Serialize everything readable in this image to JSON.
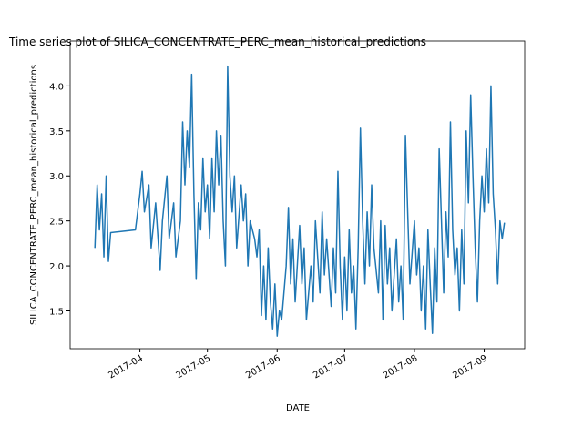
{
  "chart_data": {
    "type": "line",
    "title": "Time series plot of SILICA_CONCENTRATE_PERC_mean_historical_predictions",
    "x_label": "DATE",
    "y_label": "SILICA_CONCENTRATE_PERC_mean_historical_predictions",
    "color": "#1f77b4",
    "xlim": [
      "2017-03-01",
      "2017-09-19"
    ],
    "xticks": [
      {
        "value": "2017-04-01",
        "label": "2017-04"
      },
      {
        "value": "2017-05-01",
        "label": "2017-05"
      },
      {
        "value": "2017-06-01",
        "label": "2017-06"
      },
      {
        "value": "2017-07-01",
        "label": "2017-07"
      },
      {
        "value": "2017-08-01",
        "label": "2017-08"
      },
      {
        "value": "2017-09-01",
        "label": "2017-09"
      }
    ],
    "ylim": [
      1.08,
      4.5
    ],
    "yticks": [
      {
        "value": 1.5,
        "label": "1.5"
      },
      {
        "value": 2.0,
        "label": "2.0"
      },
      {
        "value": 2.5,
        "label": "2.5"
      },
      {
        "value": 3.0,
        "label": "3.0"
      },
      {
        "value": 3.5,
        "label": "3.5"
      },
      {
        "value": 4.0,
        "label": "4.0"
      }
    ],
    "x": [
      "2017-03-12",
      "2017-03-13",
      "2017-03-14",
      "2017-03-15",
      "2017-03-16",
      "2017-03-17",
      "2017-03-18",
      "2017-03-19",
      "2017-03-30",
      "2017-04-01",
      "2017-04-02",
      "2017-04-03",
      "2017-04-05",
      "2017-04-06",
      "2017-04-08",
      "2017-04-10",
      "2017-04-11",
      "2017-04-13",
      "2017-04-14",
      "2017-04-16",
      "2017-04-17",
      "2017-04-19",
      "2017-04-20",
      "2017-04-21",
      "2017-04-22",
      "2017-04-23",
      "2017-04-24",
      "2017-04-25",
      "2017-04-26",
      "2017-04-27",
      "2017-04-28",
      "2017-04-29",
      "2017-04-30",
      "2017-05-01",
      "2017-05-02",
      "2017-05-03",
      "2017-05-04",
      "2017-05-05",
      "2017-05-06",
      "2017-05-07",
      "2017-05-08",
      "2017-05-09",
      "2017-05-10",
      "2017-05-11",
      "2017-05-12",
      "2017-05-13",
      "2017-05-14",
      "2017-05-16",
      "2017-05-17",
      "2017-05-18",
      "2017-05-19",
      "2017-05-20",
      "2017-05-22",
      "2017-05-23",
      "2017-05-24",
      "2017-05-25",
      "2017-05-26",
      "2017-05-27",
      "2017-05-28",
      "2017-05-29",
      "2017-05-30",
      "2017-05-31",
      "2017-06-01",
      "2017-06-02",
      "2017-06-03",
      "2017-06-05",
      "2017-06-06",
      "2017-06-07",
      "2017-06-08",
      "2017-06-09",
      "2017-06-11",
      "2017-06-12",
      "2017-06-13",
      "2017-06-14",
      "2017-06-16",
      "2017-06-17",
      "2017-06-18",
      "2017-06-20",
      "2017-06-21",
      "2017-06-22",
      "2017-06-23",
      "2017-06-25",
      "2017-06-26",
      "2017-06-27",
      "2017-06-28",
      "2017-06-29",
      "2017-06-30",
      "2017-07-01",
      "2017-07-02",
      "2017-07-03",
      "2017-07-04",
      "2017-07-05",
      "2017-07-06",
      "2017-07-07",
      "2017-07-08",
      "2017-07-09",
      "2017-07-10",
      "2017-07-11",
      "2017-07-12",
      "2017-07-13",
      "2017-07-14",
      "2017-07-16",
      "2017-07-17",
      "2017-07-18",
      "2017-07-19",
      "2017-07-20",
      "2017-07-21",
      "2017-07-22",
      "2017-07-24",
      "2017-07-25",
      "2017-07-26",
      "2017-07-27",
      "2017-07-28",
      "2017-07-29",
      "2017-07-30",
      "2017-08-01",
      "2017-08-02",
      "2017-08-03",
      "2017-08-04",
      "2017-08-05",
      "2017-08-06",
      "2017-08-07",
      "2017-08-08",
      "2017-08-09",
      "2017-08-10",
      "2017-08-11",
      "2017-08-12",
      "2017-08-13",
      "2017-08-14",
      "2017-08-15",
      "2017-08-16",
      "2017-08-17",
      "2017-08-18",
      "2017-08-19",
      "2017-08-20",
      "2017-08-21",
      "2017-08-22",
      "2017-08-23",
      "2017-08-24",
      "2017-08-25",
      "2017-08-26",
      "2017-08-27",
      "2017-08-28",
      "2017-08-29",
      "2017-08-30",
      "2017-08-31",
      "2017-09-01",
      "2017-09-02",
      "2017-09-03",
      "2017-09-04",
      "2017-09-05",
      "2017-09-06",
      "2017-09-07",
      "2017-09-08",
      "2017-09-09",
      "2017-09-10"
    ],
    "values": [
      2.2,
      2.9,
      2.4,
      2.8,
      2.1,
      3.0,
      2.05,
      2.37,
      2.4,
      2.8,
      3.05,
      2.6,
      2.9,
      2.2,
      2.7,
      1.95,
      2.5,
      3.0,
      2.3,
      2.7,
      2.1,
      2.5,
      3.6,
      2.9,
      3.5,
      3.1,
      4.13,
      2.8,
      1.85,
      2.7,
      2.4,
      3.2,
      2.6,
      2.9,
      2.3,
      3.2,
      2.6,
      3.5,
      2.9,
      3.45,
      2.5,
      2.0,
      4.22,
      3.0,
      2.6,
      3.0,
      2.2,
      2.9,
      2.5,
      2.8,
      2.0,
      2.5,
      2.3,
      2.1,
      2.4,
      1.45,
      2.0,
      1.4,
      2.2,
      1.6,
      1.3,
      1.8,
      1.22,
      1.5,
      1.4,
      2.0,
      2.65,
      1.8,
      2.3,
      1.6,
      2.45,
      1.8,
      2.2,
      1.4,
      2.0,
      1.6,
      2.5,
      1.7,
      2.6,
      1.9,
      2.3,
      1.55,
      2.2,
      1.7,
      3.05,
      2.0,
      1.4,
      2.1,
      1.5,
      2.4,
      1.7,
      2.0,
      1.3,
      2.2,
      3.53,
      2.5,
      1.8,
      2.6,
      2.0,
      2.9,
      2.2,
      1.7,
      2.5,
      1.4,
      2.45,
      1.8,
      2.2,
      1.5,
      2.3,
      1.6,
      2.0,
      1.4,
      3.45,
      2.6,
      1.8,
      2.5,
      1.9,
      2.2,
      1.5,
      2.0,
      1.3,
      2.4,
      1.8,
      1.25,
      2.2,
      1.6,
      3.3,
      2.5,
      1.7,
      2.6,
      2.1,
      3.6,
      2.4,
      1.9,
      2.2,
      1.5,
      2.4,
      1.8,
      3.5,
      2.7,
      3.9,
      3.0,
      2.2,
      1.6,
      2.5,
      3.0,
      2.6,
      3.3,
      2.7,
      4.0,
      2.8,
      2.4,
      1.8,
      2.5,
      2.3,
      2.48
    ]
  }
}
